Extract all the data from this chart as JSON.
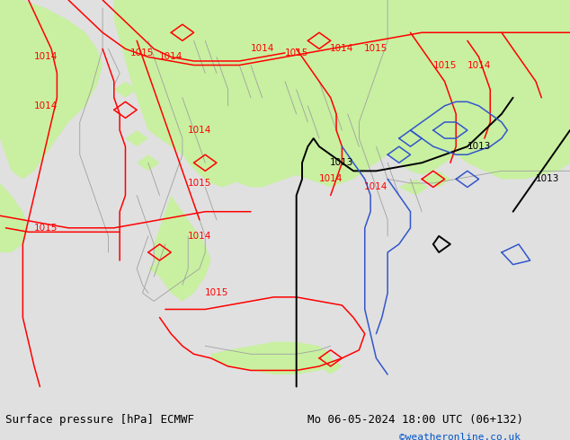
{
  "title_left": "Surface pressure [hPa] ECMWF",
  "title_right": "Mo 06-05-2024 18:00 UTC (06+132)",
  "credit": "©weatheronline.co.uk",
  "bg_color": "#e0e0e0",
  "map_bg": "#e8e8e8",
  "green": "#c8f0a0",
  "red": "#ff0000",
  "black": "#000000",
  "blue": "#3355cc",
  "gray": "#a0a0a0",
  "figsize": [
    6.34,
    4.9
  ],
  "dpi": 100
}
